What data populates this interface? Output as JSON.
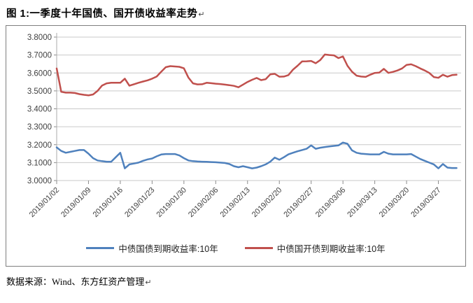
{
  "title": {
    "text": "图 1:一季度十年国债、国开债收益率走势",
    "paragraph_mark": "↵"
  },
  "footer": {
    "text": "数据来源：Wind、东方红资产管理",
    "paragraph_mark": "↵"
  },
  "colors": {
    "cgb_line": "#4F81BD",
    "cdb_line": "#C0504D",
    "gridline": "#C9C9C9",
    "axis": "#ABABAB",
    "tick": "#8C8C8C",
    "label_text": "#3F3F3F",
    "frame_border": "#7F7F7F"
  },
  "chart_data": {
    "type": "line",
    "title": "",
    "xlabel": "",
    "ylabel": "",
    "grid": "horizontal",
    "legend_position": "bottom",
    "ylim": [
      3.0,
      3.8
    ],
    "y_ticks": [
      "3.0000",
      "3.1000",
      "3.2000",
      "3.3000",
      "3.4000",
      "3.5000",
      "3.6000",
      "3.7000",
      "3.8000"
    ],
    "x_unit": "calendar days from 2019/01/02",
    "x_range_days": [
      0,
      89
    ],
    "x_tick_days": [
      0,
      7,
      14,
      21,
      28,
      35,
      42,
      49,
      56,
      63,
      70,
      77,
      84
    ],
    "x_tick_labels": [
      "2019/01/02",
      "2019/01/09",
      "2019/01/16",
      "2019/01/23",
      "2019/01/30",
      "2019/02/06",
      "2019/02/13",
      "2019/02/20",
      "2019/02/27",
      "2019/03/06",
      "2019/03/13",
      "2019/03/20",
      "2019/03/27"
    ],
    "series": [
      {
        "name": "中债国债到期收益率:10年",
        "color": "#4F81BD",
        "values": [
          3.185,
          3.165,
          3.155,
          3.16,
          3.165,
          3.17,
          3.17,
          3.15,
          3.125,
          3.112,
          3.108,
          3.105,
          3.105,
          3.13,
          3.155,
          3.068,
          3.09,
          3.095,
          3.1,
          3.11,
          3.118,
          3.123,
          3.135,
          3.145,
          3.148,
          3.148,
          3.148,
          3.14,
          3.125,
          3.112,
          3.108,
          3.106,
          3.105,
          3.104,
          3.103,
          3.102,
          3.1,
          3.098,
          3.092,
          3.08,
          3.074,
          3.08,
          3.074,
          3.068,
          3.072,
          3.08,
          3.09,
          3.105,
          3.128,
          3.116,
          3.13,
          3.146,
          3.155,
          3.163,
          3.17,
          3.177,
          3.196,
          3.177,
          3.183,
          3.187,
          3.19,
          3.193,
          3.196,
          3.212,
          3.205,
          3.168,
          3.155,
          3.15,
          3.148,
          3.146,
          3.146,
          3.146,
          3.16,
          3.15,
          3.146,
          3.146,
          3.146,
          3.146,
          3.148,
          3.134,
          3.12,
          3.11,
          3.1,
          3.09,
          3.068,
          3.092,
          3.072,
          3.07,
          3.07
        ]
      },
      {
        "name": "中债国开债到期收益率:10年",
        "color": "#C0504D",
        "values": [
          3.625,
          3.495,
          3.49,
          3.49,
          3.488,
          3.482,
          3.478,
          3.475,
          3.48,
          3.5,
          3.53,
          3.542,
          3.545,
          3.545,
          3.545,
          3.568,
          3.529,
          3.537,
          3.545,
          3.552,
          3.559,
          3.568,
          3.58,
          3.607,
          3.632,
          3.638,
          3.636,
          3.634,
          3.626,
          3.574,
          3.542,
          3.536,
          3.537,
          3.545,
          3.543,
          3.54,
          3.538,
          3.535,
          3.532,
          3.528,
          3.52,
          3.535,
          3.55,
          3.562,
          3.572,
          3.56,
          3.565,
          3.592,
          3.595,
          3.579,
          3.58,
          3.588,
          3.618,
          3.64,
          3.664,
          3.665,
          3.667,
          3.654,
          3.672,
          3.703,
          3.7,
          3.698,
          3.683,
          3.692,
          3.64,
          3.607,
          3.585,
          3.58,
          3.578,
          3.59,
          3.6,
          3.602,
          3.623,
          3.6,
          3.606,
          3.614,
          3.625,
          3.645,
          3.648,
          3.638,
          3.625,
          3.614,
          3.6,
          3.577,
          3.573,
          3.59,
          3.579,
          3.588,
          3.59
        ]
      }
    ]
  }
}
